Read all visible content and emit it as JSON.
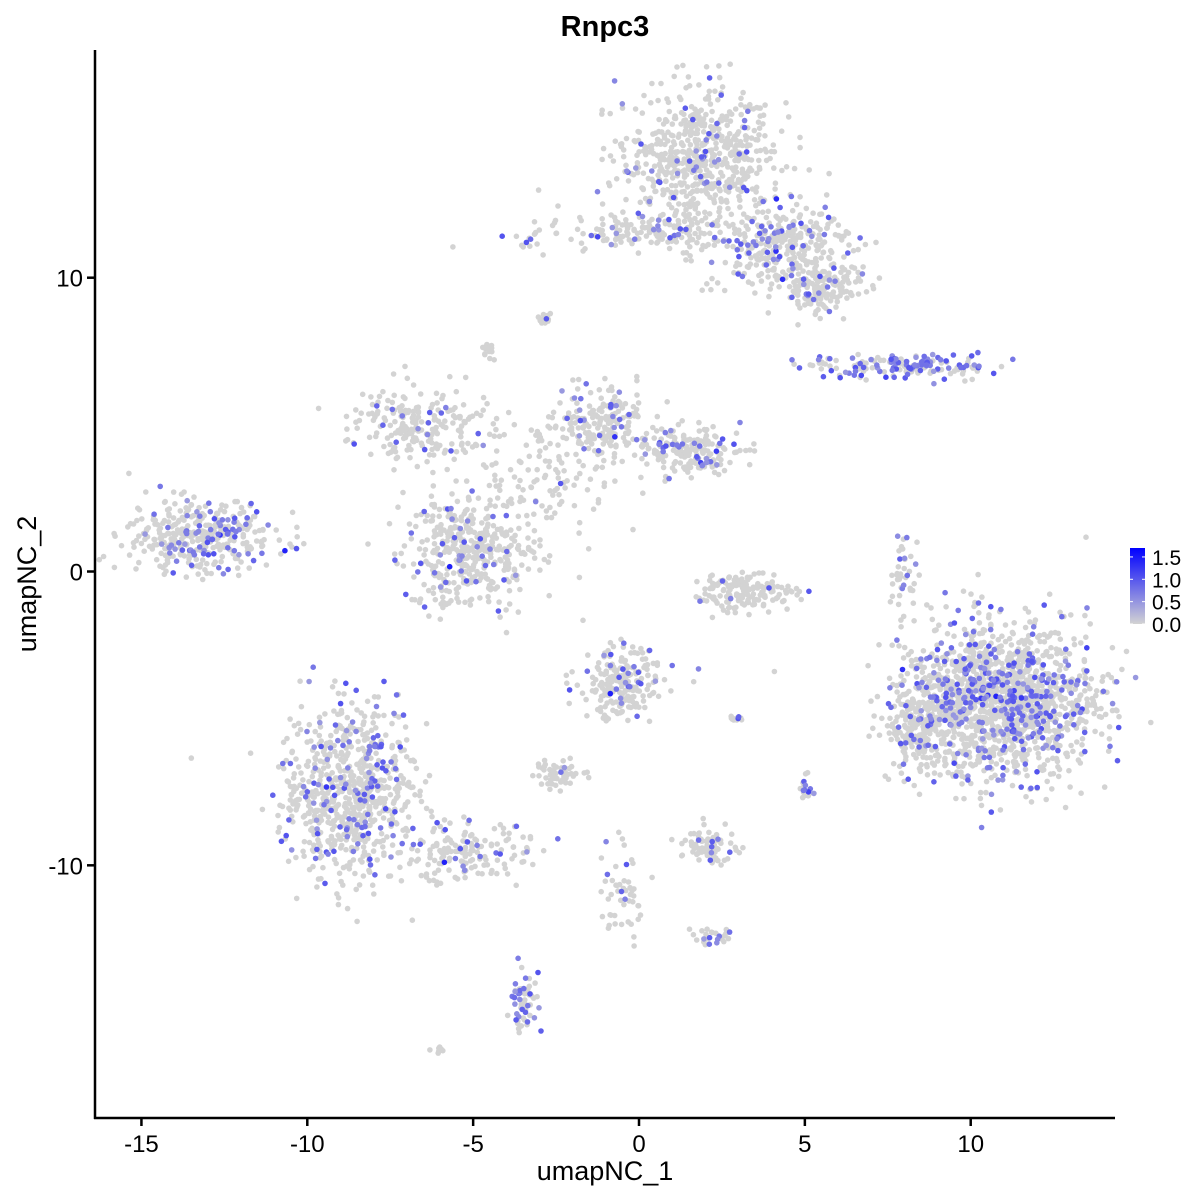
{
  "chart_data": {
    "type": "scatter",
    "title": "Rnpc3",
    "xlabel": "umapNC_1",
    "ylabel": "umapNC_2",
    "xlim": [
      -16.4,
      14.35
    ],
    "ylim": [
      -18.6,
      17.75
    ],
    "xticks": [
      -15,
      -10,
      -5,
      0,
      5,
      10
    ],
    "yticks": [
      -10,
      0,
      10
    ],
    "grid": false,
    "legend": {
      "placement": "right",
      "ticks": [
        0.0,
        0.5,
        1.0,
        1.5
      ],
      "tick_labels": [
        "0.0",
        "0.5",
        "1.0",
        "1.5"
      ],
      "range": [
        0,
        1.7
      ]
    },
    "colors": {
      "low": "#d3d3d3",
      "high": "#0000ff"
    },
    "cell_groups": [
      {
        "x": 1.8,
        "y": 14.0,
        "sx": 1.2,
        "sy": 1.2,
        "n": 650,
        "frac_expr": 0.08
      },
      {
        "x": 4.4,
        "y": 11.0,
        "sx": 1.1,
        "sy": 0.7,
        "n": 320,
        "frac_expr": 0.15
      },
      {
        "x": 5.5,
        "y": 9.6,
        "sx": 0.6,
        "sy": 0.4,
        "n": 150,
        "frac_expr": 0.12
      },
      {
        "x": -0.3,
        "y": 11.5,
        "sx": 1.6,
        "sy": 0.3,
        "n": 160,
        "frac_expr": 0.12
      },
      {
        "x": -13.2,
        "y": 1.2,
        "sx": 1.1,
        "sy": 0.6,
        "n": 380,
        "frac_expr": 0.2
      },
      {
        "x": -5.1,
        "y": 0.7,
        "sx": 1.0,
        "sy": 0.9,
        "n": 420,
        "frac_expr": 0.1
      },
      {
        "x": -6.6,
        "y": 5.0,
        "sx": 1.1,
        "sy": 0.6,
        "n": 220,
        "frac_expr": 0.08
      },
      {
        "x": -3.0,
        "y": 3.0,
        "sx": 1.2,
        "sy": 0.8,
        "n": 120,
        "frac_expr": 0.05
      },
      {
        "x": -1.1,
        "y": 5.0,
        "sx": 0.7,
        "sy": 0.6,
        "n": 200,
        "frac_expr": 0.1
      },
      {
        "x": 1.5,
        "y": 4.1,
        "sx": 0.8,
        "sy": 0.4,
        "n": 200,
        "frac_expr": 0.12
      },
      {
        "x": -8.7,
        "y": -7.5,
        "sx": 1.0,
        "sy": 1.5,
        "n": 750,
        "frac_expr": 0.15
      },
      {
        "x": -5.2,
        "y": -9.6,
        "sx": 1.1,
        "sy": 0.5,
        "n": 160,
        "frac_expr": 0.15
      },
      {
        "x": 10.8,
        "y": -4.4,
        "sx": 1.4,
        "sy": 1.3,
        "n": 1600,
        "frac_expr": 0.2
      },
      {
        "x": 8.5,
        "y": -5.2,
        "sx": 0.5,
        "sy": 0.9,
        "n": 150,
        "frac_expr": 0.12
      },
      {
        "x": -0.5,
        "y": -3.8,
        "sx": 0.6,
        "sy": 0.6,
        "n": 210,
        "frac_expr": 0.15
      },
      {
        "x": 3.2,
        "y": -0.7,
        "sx": 0.8,
        "sy": 0.35,
        "n": 160,
        "frac_expr": 0.05
      },
      {
        "x": 8.0,
        "y": 7.0,
        "sx": 1.4,
        "sy": 0.2,
        "n": 160,
        "frac_expr": 0.5
      },
      {
        "x": -2.4,
        "y": -6.9,
        "sx": 0.4,
        "sy": 0.2,
        "n": 60,
        "frac_expr": 0.05
      },
      {
        "x": 2.1,
        "y": -9.4,
        "sx": 0.4,
        "sy": 0.3,
        "n": 80,
        "frac_expr": 0.1
      },
      {
        "x": -3.5,
        "y": -14.6,
        "sx": 0.2,
        "sy": 0.5,
        "n": 60,
        "frac_expr": 0.4
      },
      {
        "x": -0.5,
        "y": -10.9,
        "sx": 0.3,
        "sy": 0.8,
        "n": 50,
        "frac_expr": 0.1
      },
      {
        "x": 8.0,
        "y": 0.0,
        "sx": 0.2,
        "sy": 0.6,
        "n": 40,
        "frac_expr": 0.2
      },
      {
        "x": -2.8,
        "y": 8.6,
        "sx": 0.1,
        "sy": 0.1,
        "n": 15,
        "frac_expr": 0.2
      },
      {
        "x": -4.6,
        "y": 7.5,
        "sx": 0.1,
        "sy": 0.15,
        "n": 20,
        "frac_expr": 0.1
      },
      {
        "x": 5.0,
        "y": -7.4,
        "sx": 0.1,
        "sy": 0.2,
        "n": 20,
        "frac_expr": 0.4
      },
      {
        "x": 2.1,
        "y": -12.4,
        "sx": 0.3,
        "sy": 0.15,
        "n": 25,
        "frac_expr": 0.3
      },
      {
        "x": 2.9,
        "y": -5.0,
        "sx": 0.15,
        "sy": 0.05,
        "n": 10,
        "frac_expr": 0.3
      },
      {
        "x": -6.0,
        "y": -16.3,
        "sx": 0.1,
        "sy": 0.05,
        "n": 8,
        "frac_expr": 0.0
      }
    ]
  }
}
